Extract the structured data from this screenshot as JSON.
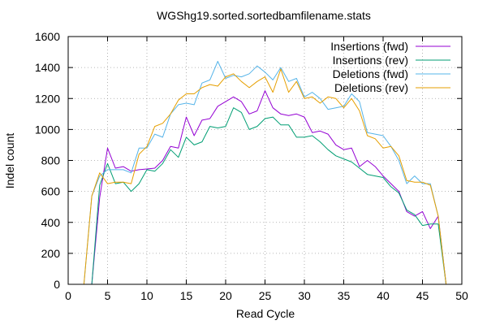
{
  "chart_data": {
    "type": "line",
    "title": "WGShg19.sorted.sortedbamfilename.stats",
    "xlabel": "Read Cycle",
    "ylabel": "Indel count",
    "xlim": [
      0,
      50
    ],
    "ylim": [
      0,
      1600
    ],
    "xticks": [
      0,
      5,
      10,
      15,
      20,
      25,
      30,
      35,
      40,
      45,
      50
    ],
    "yticks": [
      0,
      200,
      400,
      600,
      800,
      1000,
      1200,
      1400,
      1600
    ],
    "grid": true,
    "legend_position": "top-right",
    "x": [
      2,
      3,
      4,
      5,
      6,
      7,
      8,
      9,
      10,
      11,
      12,
      13,
      14,
      15,
      16,
      17,
      18,
      19,
      20,
      21,
      22,
      23,
      24,
      25,
      26,
      27,
      28,
      29,
      30,
      31,
      32,
      33,
      34,
      35,
      36,
      37,
      38,
      39,
      40,
      41,
      42,
      43,
      44,
      45,
      46,
      47,
      48
    ],
    "series": [
      {
        "name": "Insertions (fwd)",
        "color": "#9400d3",
        "values": [
          0,
          0,
          560,
          880,
          750,
          760,
          730,
          740,
          745,
          750,
          800,
          890,
          880,
          1080,
          960,
          1060,
          1070,
          1150,
          1180,
          1210,
          1180,
          1100,
          1120,
          1250,
          1140,
          1100,
          1090,
          1100,
          1080,
          980,
          990,
          970,
          900,
          870,
          880,
          760,
          800,
          760,
          700,
          650,
          600,
          470,
          440,
          470,
          360,
          440,
          0
        ]
      },
      {
        "name": "Insertions (rev)",
        "color": "#009e73",
        "values": [
          0,
          0,
          640,
          780,
          650,
          660,
          600,
          650,
          740,
          730,
          780,
          870,
          820,
          950,
          900,
          920,
          1020,
          1010,
          1020,
          1140,
          1110,
          1000,
          1020,
          1070,
          1080,
          1030,
          1030,
          950,
          950,
          960,
          920,
          870,
          830,
          810,
          790,
          750,
          710,
          700,
          690,
          630,
          590,
          480,
          450,
          380,
          390,
          390,
          0
        ]
      },
      {
        "name": "Deletions (fwd)",
        "color": "#56b4e9",
        "values": [
          0,
          570,
          700,
          740,
          740,
          740,
          720,
          880,
          880,
          970,
          950,
          1100,
          1160,
          1170,
          1160,
          1300,
          1320,
          1440,
          1330,
          1350,
          1340,
          1360,
          1410,
          1370,
          1320,
          1400,
          1310,
          1330,
          1210,
          1240,
          1200,
          1130,
          1140,
          1150,
          1230,
          1180,
          980,
          970,
          960,
          890,
          800,
          650,
          700,
          650,
          650,
          440,
          0
        ]
      },
      {
        "name": "Deletions (rev)",
        "color": "#e69f00",
        "values": [
          0,
          570,
          720,
          650,
          660,
          660,
          650,
          840,
          890,
          1020,
          1040,
          1100,
          1190,
          1230,
          1230,
          1270,
          1290,
          1280,
          1340,
          1360,
          1310,
          1270,
          1310,
          1340,
          1240,
          1390,
          1240,
          1310,
          1200,
          1210,
          1170,
          1210,
          1200,
          1140,
          1200,
          1120,
          960,
          940,
          880,
          890,
          830,
          670,
          660,
          660,
          640,
          440,
          0
        ]
      }
    ]
  }
}
